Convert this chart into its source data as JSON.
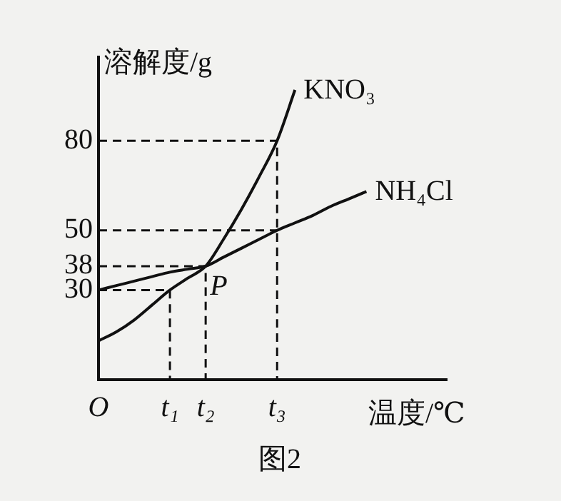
{
  "chart_data": {
    "type": "line",
    "xlabel": "温度/℃",
    "ylabel": "溶解度/g",
    "categories": [
      "O",
      null,
      null,
      null,
      "t₁",
      null,
      "t₂",
      null,
      null,
      null,
      "t₃",
      null,
      null,
      null,
      null,
      null,
      null,
      null,
      null,
      null
    ],
    "ylim": [
      0,
      108
    ],
    "yticks": [
      30,
      38,
      50,
      80
    ],
    "grid": false,
    "legend": false,
    "marker": "none",
    "series": [
      {
        "name": "KNO₃",
        "color": "#111111",
        "line_style": "solid",
        "values": [
          13,
          16,
          20,
          25,
          30,
          34,
          38,
          47,
          57,
          68,
          80,
          97,
          null,
          null,
          null,
          null,
          null,
          null,
          null,
          null
        ]
      },
      {
        "name": "NH₄Cl",
        "color": "#111111",
        "line_style": "solid",
        "values": [
          30,
          31.5,
          33,
          34.5,
          36,
          37,
          38,
          41,
          44,
          47,
          50,
          52.5,
          55,
          58,
          60.5,
          63,
          null,
          null,
          null,
          null
        ]
      },
      {
        "color": "#111111",
        "line_style": "dashed",
        "x": [
          "O",
          "t₃",
          "t₃"
        ],
        "values": [
          80,
          80,
          0
        ]
      },
      {
        "color": "#111111",
        "line_style": "dashed",
        "x": [
          "O",
          "t₃"
        ],
        "values": [
          50,
          50
        ]
      },
      {
        "color": "#111111",
        "line_style": "dashed",
        "x": [
          "O",
          "t₂",
          "t₂"
        ],
        "values": [
          38,
          38,
          0
        ]
      },
      {
        "color": "#111111",
        "line_style": "dashed",
        "x": [
          "O",
          "t₁",
          "t₁"
        ],
        "values": [
          30,
          30,
          0
        ]
      }
    ],
    "annotations": [
      {
        "text": "P",
        "x": "t₂",
        "y": 38
      },
      "图2"
    ]
  }
}
